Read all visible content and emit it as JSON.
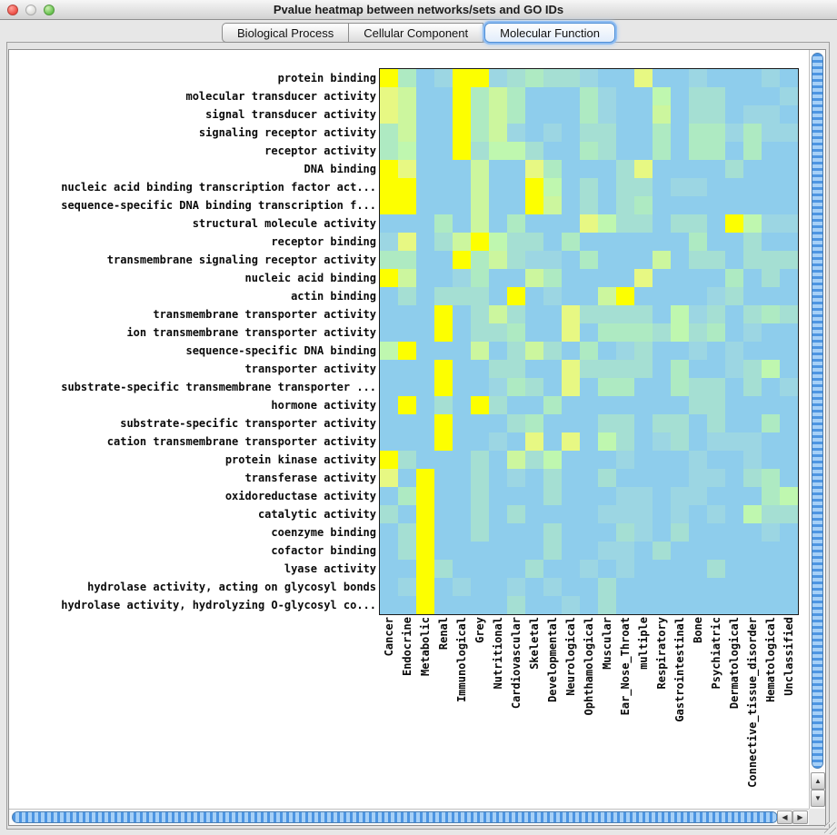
{
  "window": {
    "title": "Pvalue heatmap between networks/sets and GO IDs"
  },
  "tabs": [
    {
      "label": "Biological Process",
      "selected": false
    },
    {
      "label": "Cellular Component",
      "selected": false
    },
    {
      "label": "Molecular Function",
      "selected": true
    }
  ],
  "icons": {
    "up": "▲",
    "down": "▼",
    "left": "◀",
    "right": "▶"
  },
  "chart_data": {
    "type": "heatmap",
    "title": "Pvalue heatmap between networks/sets and GO IDs",
    "rows": [
      "protein binding",
      "molecular transducer activity",
      "signal transducer activity",
      "signaling receptor activity",
      "receptor activity",
      "DNA binding",
      "nucleic acid binding transcription factor act...",
      "sequence-specific DNA binding transcription f...",
      "structural molecule activity",
      "receptor binding",
      "transmembrane signaling receptor activity",
      "nucleic acid binding",
      "actin binding",
      "transmembrane transporter activity",
      "ion transmembrane transporter activity",
      "sequence-specific DNA binding",
      "transporter activity",
      "substrate-specific transmembrane transporter ...",
      "hormone activity",
      "substrate-specific transporter activity",
      "cation transmembrane transporter activity",
      "protein kinase activity",
      "transferase activity",
      "oxidoreductase activity",
      "catalytic activity",
      "coenzyme binding",
      "cofactor binding",
      "lyase activity",
      "hydrolase activity, acting on glycosyl bonds",
      "hydrolase activity, hydrolyzing O-glycosyl co..."
    ],
    "columns": [
      "Cancer",
      "Endocrine",
      "Metabolic",
      "Renal",
      "Immunological",
      "Grey",
      "Nutritional",
      "Cardiovascular",
      "Skeletal",
      "Developmental",
      "Neurological",
      "Ophthamological",
      "Muscular",
      "Ear_Nose_Throat",
      "multiple",
      "Respiratory",
      "Gastrointestinal",
      "Bone",
      "Psychiatric",
      "Dermatological",
      "Connective_tissue_disorder",
      "Hematological",
      "Unclassified"
    ],
    "palette": [
      "#8ecdec",
      "#9cd6e3",
      "#a5dfd3",
      "#aeeac2",
      "#bff7af",
      "#ccf69e",
      "#e7f883",
      "#fdff00"
    ],
    "palette_scale": "0 = low significance (light blue) … 7 = high significance (bright yellow)",
    "values": [
      [
        7,
        3,
        0,
        1,
        7,
        7,
        1,
        2,
        3,
        2,
        2,
        1,
        0,
        0,
        6,
        0,
        0,
        1,
        0,
        0,
        0,
        1,
        0
      ],
      [
        6,
        5,
        0,
        0,
        7,
        3,
        5,
        3,
        0,
        0,
        0,
        3,
        1,
        0,
        0,
        4,
        0,
        2,
        2,
        0,
        0,
        0,
        1
      ],
      [
        6,
        5,
        0,
        0,
        7,
        3,
        5,
        3,
        0,
        0,
        0,
        3,
        1,
        0,
        0,
        5,
        0,
        2,
        2,
        0,
        1,
        1,
        0
      ],
      [
        3,
        5,
        0,
        0,
        7,
        3,
        5,
        1,
        0,
        1,
        0,
        2,
        2,
        0,
        0,
        3,
        0,
        3,
        3,
        1,
        3,
        1,
        1
      ],
      [
        3,
        4,
        0,
        0,
        7,
        2,
        4,
        4,
        2,
        0,
        0,
        3,
        2,
        0,
        0,
        3,
        0,
        3,
        3,
        0,
        3,
        0,
        0
      ],
      [
        7,
        6,
        0,
        0,
        0,
        5,
        0,
        0,
        6,
        3,
        0,
        0,
        0,
        2,
        6,
        0,
        0,
        0,
        0,
        2,
        0,
        0,
        0
      ],
      [
        7,
        7,
        0,
        0,
        0,
        5,
        0,
        0,
        7,
        4,
        0,
        2,
        0,
        2,
        2,
        0,
        1,
        1,
        0,
        0,
        0,
        0,
        0
      ],
      [
        7,
        7,
        0,
        0,
        0,
        5,
        0,
        0,
        7,
        5,
        0,
        2,
        0,
        2,
        3,
        0,
        0,
        0,
        0,
        0,
        0,
        0,
        0
      ],
      [
        0,
        0,
        0,
        3,
        0,
        5,
        0,
        3,
        0,
        0,
        0,
        6,
        4,
        2,
        2,
        0,
        2,
        2,
        0,
        7,
        4,
        1,
        1
      ],
      [
        1,
        6,
        0,
        2,
        5,
        7,
        4,
        2,
        2,
        0,
        3,
        0,
        0,
        0,
        0,
        0,
        0,
        3,
        0,
        0,
        2,
        0,
        0
      ],
      [
        3,
        3,
        0,
        0,
        7,
        3,
        5,
        2,
        1,
        1,
        0,
        3,
        0,
        0,
        0,
        5,
        0,
        2,
        2,
        0,
        2,
        2,
        2
      ],
      [
        7,
        5,
        0,
        0,
        1,
        3,
        0,
        0,
        5,
        3,
        0,
        0,
        0,
        0,
        6,
        0,
        0,
        0,
        0,
        3,
        0,
        2,
        0
      ],
      [
        0,
        2,
        0,
        2,
        2,
        2,
        0,
        7,
        0,
        1,
        0,
        0,
        5,
        7,
        0,
        0,
        0,
        0,
        1,
        2,
        0,
        0,
        0
      ],
      [
        0,
        0,
        0,
        7,
        0,
        2,
        5,
        2,
        0,
        0,
        6,
        2,
        2,
        2,
        2,
        0,
        4,
        1,
        2,
        0,
        2,
        3,
        2
      ],
      [
        0,
        0,
        0,
        7,
        0,
        2,
        2,
        3,
        0,
        0,
        6,
        0,
        3,
        3,
        3,
        2,
        4,
        2,
        3,
        0,
        1,
        0,
        0
      ],
      [
        4,
        7,
        0,
        0,
        0,
        5,
        0,
        2,
        5,
        2,
        0,
        3,
        0,
        1,
        2,
        0,
        0,
        1,
        0,
        1,
        0,
        0,
        0
      ],
      [
        0,
        0,
        0,
        7,
        0,
        0,
        2,
        2,
        0,
        0,
        6,
        2,
        2,
        2,
        2,
        0,
        3,
        0,
        0,
        1,
        2,
        4,
        0
      ],
      [
        0,
        0,
        0,
        7,
        0,
        0,
        1,
        3,
        2,
        0,
        6,
        0,
        3,
        3,
        0,
        0,
        3,
        2,
        2,
        0,
        2,
        0,
        1
      ],
      [
        0,
        7,
        0,
        2,
        0,
        7,
        2,
        0,
        0,
        3,
        0,
        0,
        0,
        0,
        0,
        0,
        0,
        2,
        2,
        0,
        0,
        0,
        0
      ],
      [
        0,
        0,
        0,
        7,
        0,
        0,
        0,
        2,
        3,
        0,
        0,
        0,
        2,
        2,
        0,
        2,
        2,
        0,
        2,
        0,
        0,
        3,
        0
      ],
      [
        0,
        0,
        0,
        7,
        0,
        0,
        1,
        0,
        6,
        0,
        6,
        0,
        4,
        2,
        0,
        1,
        2,
        0,
        1,
        1,
        1,
        0,
        0
      ],
      [
        7,
        2,
        0,
        0,
        0,
        2,
        0,
        5,
        2,
        4,
        0,
        0,
        0,
        1,
        0,
        0,
        0,
        1,
        0,
        0,
        1,
        0,
        0
      ],
      [
        6,
        0,
        7,
        0,
        0,
        2,
        0,
        1,
        0,
        2,
        0,
        0,
        2,
        0,
        0,
        0,
        0,
        1,
        1,
        0,
        2,
        3,
        0
      ],
      [
        0,
        3,
        7,
        0,
        0,
        2,
        0,
        0,
        0,
        2,
        0,
        0,
        0,
        1,
        1,
        0,
        1,
        1,
        0,
        0,
        0,
        3,
        4
      ],
      [
        2,
        0,
        7,
        0,
        0,
        2,
        0,
        2,
        0,
        0,
        0,
        0,
        1,
        1,
        1,
        0,
        1,
        0,
        1,
        0,
        4,
        2,
        2
      ],
      [
        0,
        2,
        7,
        0,
        0,
        2,
        0,
        0,
        0,
        2,
        0,
        0,
        0,
        2,
        1,
        0,
        2,
        0,
        0,
        0,
        0,
        1,
        0
      ],
      [
        0,
        2,
        7,
        0,
        0,
        0,
        0,
        0,
        0,
        2,
        0,
        0,
        1,
        1,
        0,
        2,
        0,
        0,
        0,
        0,
        0,
        0,
        0
      ],
      [
        0,
        0,
        7,
        2,
        0,
        0,
        0,
        0,
        2,
        0,
        0,
        1,
        0,
        1,
        0,
        0,
        0,
        0,
        2,
        0,
        0,
        0,
        0
      ],
      [
        0,
        1,
        7,
        0,
        1,
        0,
        0,
        1,
        0,
        1,
        0,
        0,
        2,
        0,
        0,
        0,
        0,
        0,
        0,
        0,
        0,
        0,
        0
      ],
      [
        0,
        0,
        7,
        0,
        0,
        0,
        0,
        2,
        0,
        0,
        1,
        0,
        2,
        0,
        0,
        0,
        0,
        0,
        0,
        0,
        0,
        0,
        0
      ]
    ]
  }
}
